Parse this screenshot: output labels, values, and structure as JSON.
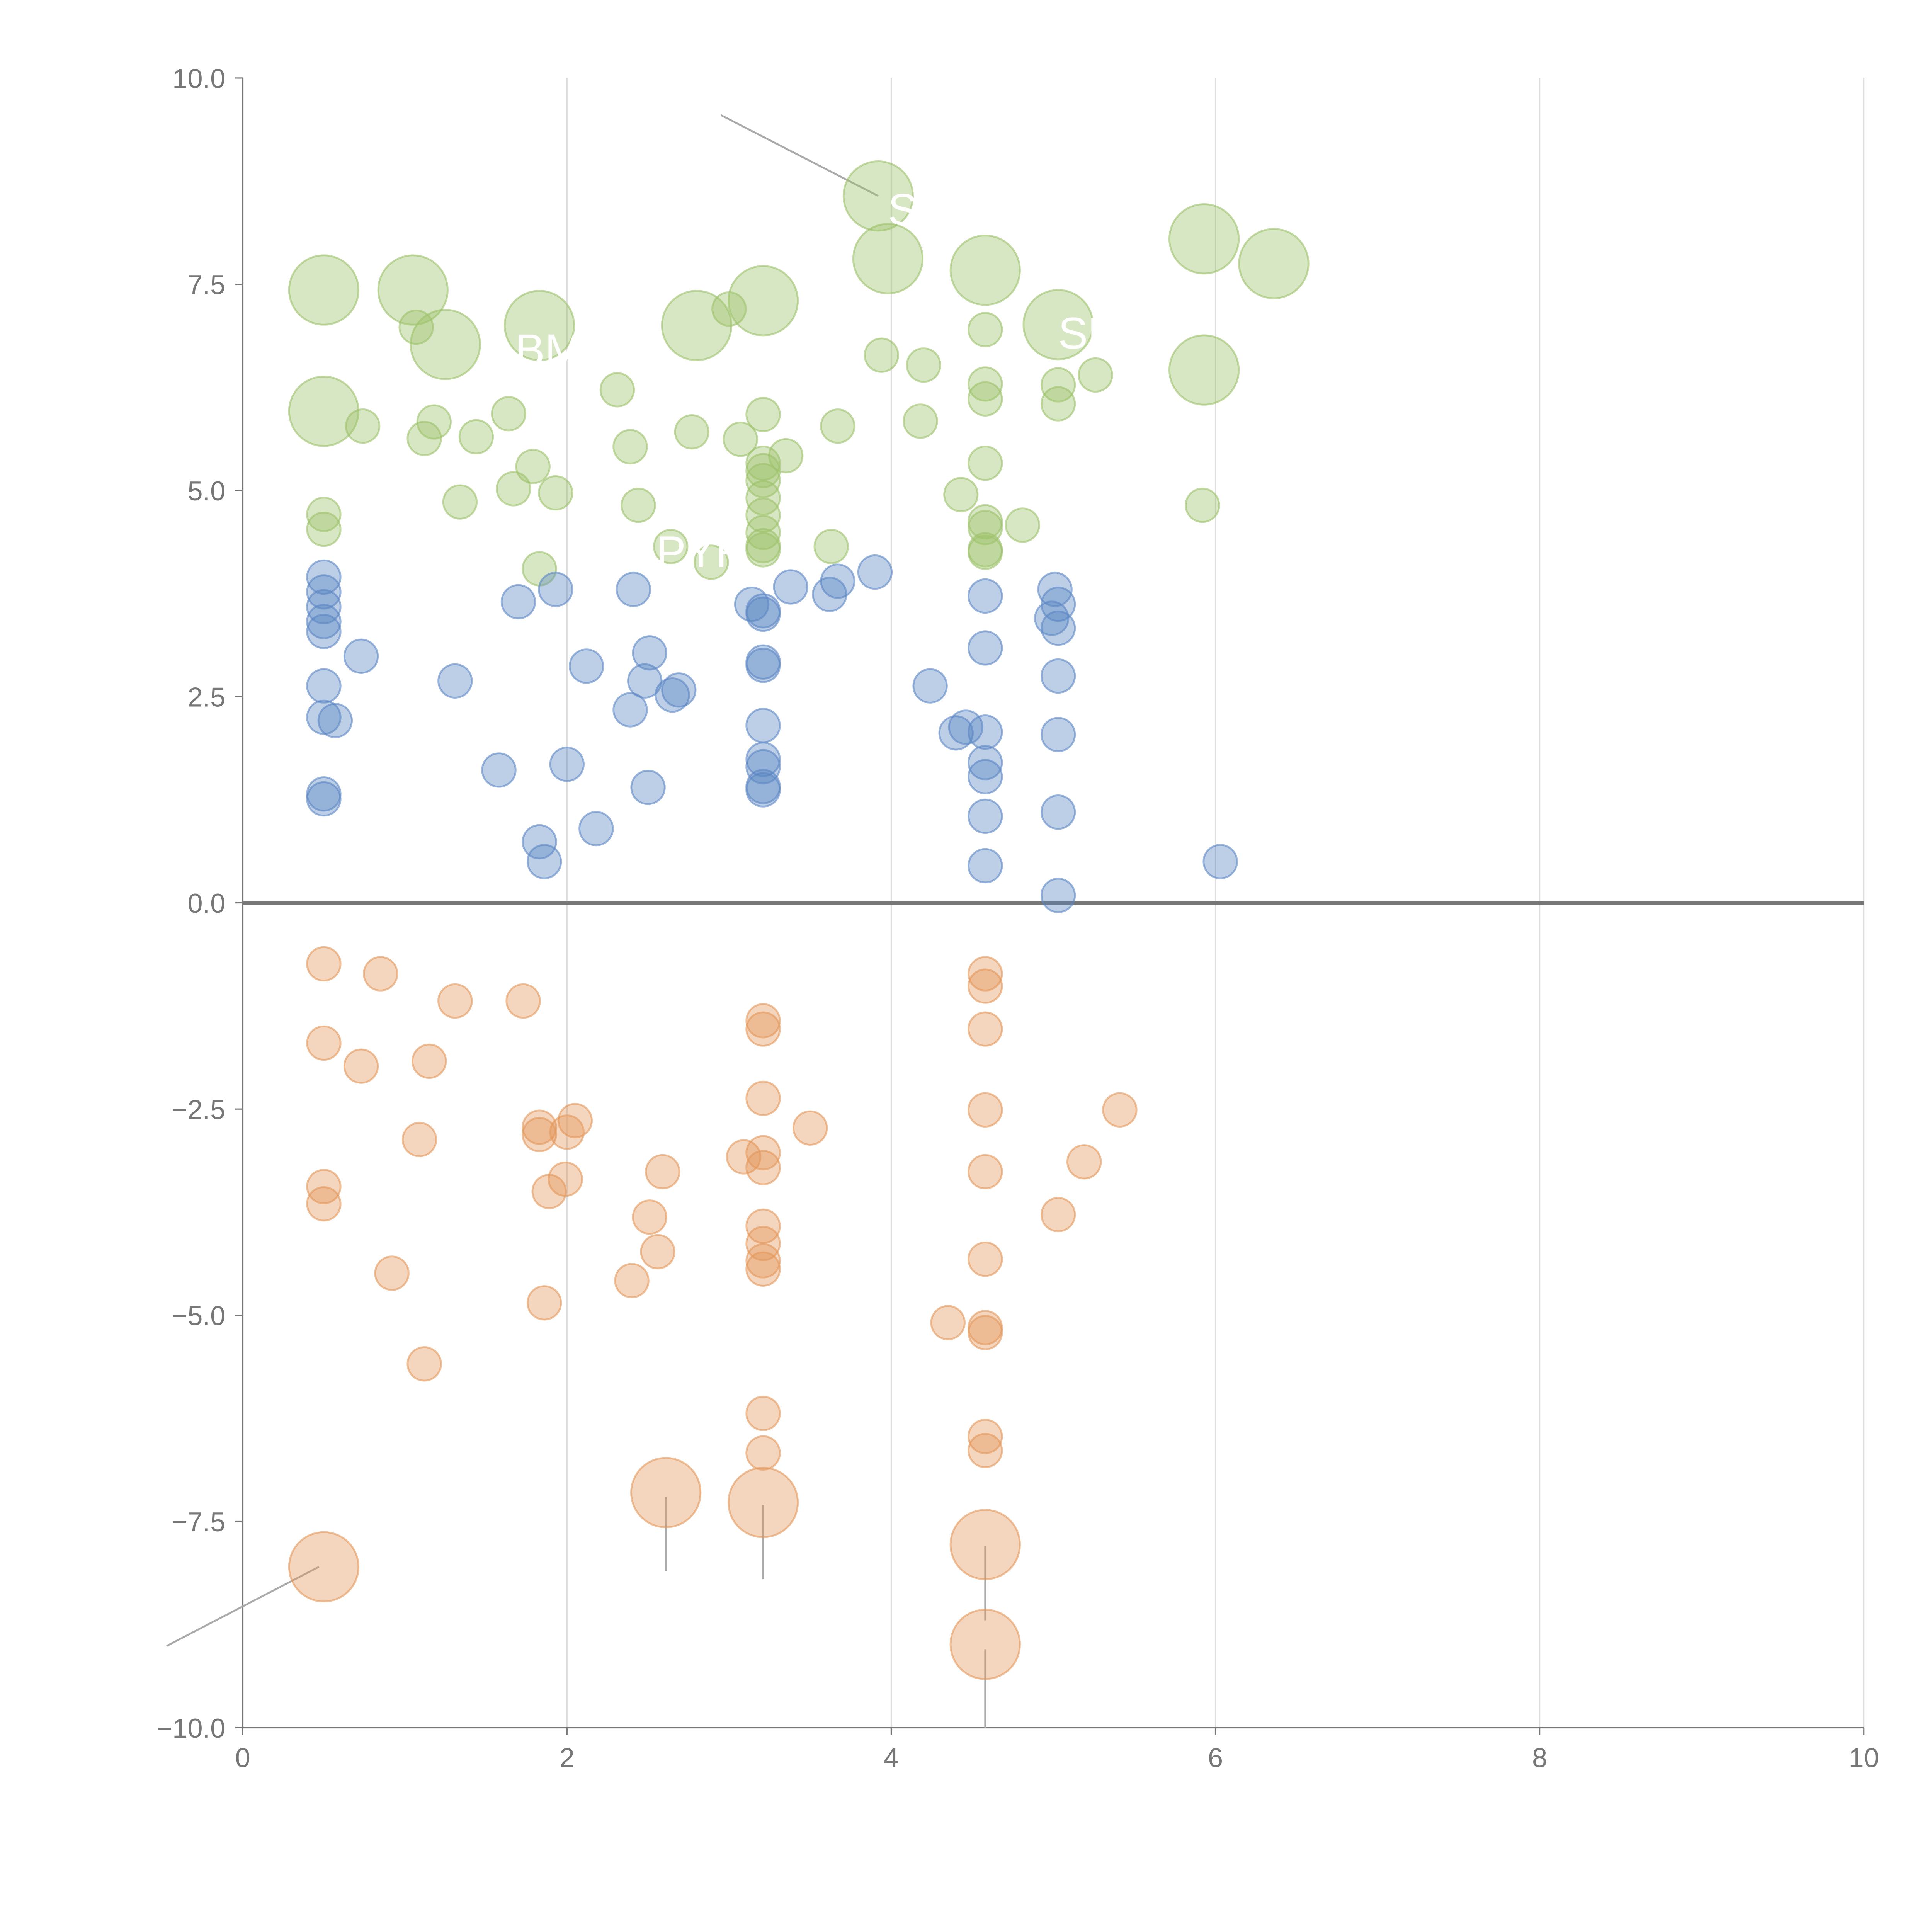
{
  "chart_data": {
    "type": "scatter",
    "title": "",
    "xlabel": "",
    "ylabel": "",
    "xlim": [
      0,
      10
    ],
    "ylim": [
      -10,
      10
    ],
    "grid": "vertical",
    "x_ticks": [
      0,
      2,
      4,
      6,
      8,
      10
    ],
    "x_tick_labels": [
      "0",
      "2",
      "4",
      "6",
      "8",
      "10"
    ],
    "y_ticks": [
      10,
      7.5,
      5,
      2.5,
      0,
      -2.5,
      -5,
      -7.5,
      -10
    ],
    "y_tick_labels": [
      "10.0",
      "7.5",
      "5.0",
      "2.5",
      "0.0",
      "−2.5",
      "−5.0",
      "−7.5",
      "−10.0"
    ],
    "series": [
      {
        "name": "green",
        "color": "#9dc26a",
        "points": [
          [
            0.5,
            7.43,
            3
          ],
          [
            1.05,
            7.43,
            3
          ],
          [
            1.25,
            6.77,
            3
          ],
          [
            1.83,
            7.0,
            3
          ],
          [
            2.8,
            7.0,
            3
          ],
          [
            3.21,
            7.3,
            3
          ],
          [
            3.92,
            8.57,
            3
          ],
          [
            3.98,
            7.81,
            3
          ],
          [
            4.58,
            7.67,
            3
          ],
          [
            5.03,
            7.01,
            3
          ],
          [
            5.93,
            8.05,
            3
          ],
          [
            6.36,
            7.75,
            3
          ],
          [
            0.5,
            5.96,
            3
          ],
          [
            5.93,
            6.46,
            3
          ],
          [
            1.07,
            6.98,
            1
          ],
          [
            3.0,
            7.2,
            1
          ],
          [
            0.74,
            5.78,
            1
          ],
          [
            1.18,
            5.83,
            1
          ],
          [
            1.12,
            5.63,
            1
          ],
          [
            1.44,
            5.65,
            1
          ],
          [
            1.64,
            5.93,
            1
          ],
          [
            2.31,
            6.22,
            1
          ],
          [
            2.39,
            5.53,
            1
          ],
          [
            2.77,
            5.71,
            1
          ],
          [
            3.07,
            5.62,
            1
          ],
          [
            3.21,
            5.92,
            1
          ],
          [
            3.35,
            5.42,
            1
          ],
          [
            3.67,
            5.78,
            1
          ],
          [
            3.94,
            6.64,
            1
          ],
          [
            4.2,
            6.52,
            1
          ],
          [
            4.18,
            5.84,
            1
          ],
          [
            4.58,
            6.95,
            1
          ],
          [
            4.58,
            6.29,
            1
          ],
          [
            4.58,
            6.11,
            1
          ],
          [
            5.03,
            6.28,
            1
          ],
          [
            5.03,
            6.05,
            1
          ],
          [
            5.26,
            6.4,
            1
          ],
          [
            4.58,
            5.33,
            1
          ],
          [
            4.43,
            4.95,
            1
          ],
          [
            4.81,
            4.58,
            1
          ],
          [
            4.58,
            4.62,
            1
          ],
          [
            4.58,
            4.55,
            1
          ],
          [
            4.58,
            4.28,
            1
          ],
          [
            4.58,
            4.25,
            1
          ],
          [
            5.92,
            4.82,
            1
          ],
          [
            0.5,
            4.71,
            1
          ],
          [
            0.5,
            4.53,
            1
          ],
          [
            1.34,
            4.86,
            1
          ],
          [
            1.67,
            5.02,
            1
          ],
          [
            1.79,
            5.29,
            1
          ],
          [
            1.93,
            4.97,
            1
          ],
          [
            2.44,
            4.82,
            1
          ],
          [
            1.83,
            4.05,
            1
          ],
          [
            2.64,
            4.32,
            1
          ],
          [
            2.89,
            4.13,
            1
          ],
          [
            3.63,
            4.32,
            1
          ],
          [
            3.21,
            5.33,
            1
          ],
          [
            3.21,
            5.24,
            1
          ],
          [
            3.21,
            5.12,
            1
          ],
          [
            3.21,
            4.91,
            1
          ],
          [
            3.21,
            4.7,
            1
          ],
          [
            3.21,
            4.49,
            1
          ],
          [
            3.21,
            4.33,
            1
          ],
          [
            3.21,
            4.28,
            1
          ]
        ]
      },
      {
        "name": "blue",
        "color": "#5b86c4",
        "points": [
          [
            0.5,
            3.95,
            1
          ],
          [
            0.5,
            3.77,
            1
          ],
          [
            0.5,
            3.59,
            1
          ],
          [
            0.5,
            3.41,
            1
          ],
          [
            0.5,
            3.29,
            1
          ],
          [
            0.5,
            2.63,
            1
          ],
          [
            0.5,
            2.25,
            1
          ],
          [
            0.57,
            2.21,
            1
          ],
          [
            0.73,
            2.99,
            1
          ],
          [
            0.5,
            1.32,
            1
          ],
          [
            0.5,
            1.26,
            1
          ],
          [
            1.31,
            2.69,
            1
          ],
          [
            1.58,
            1.61,
            1
          ],
          [
            1.7,
            3.65,
            1
          ],
          [
            1.93,
            3.8,
            1
          ],
          [
            1.83,
            0.74,
            1
          ],
          [
            1.86,
            0.5,
            1
          ],
          [
            2.0,
            1.68,
            1
          ],
          [
            2.12,
            2.87,
            1
          ],
          [
            2.18,
            0.9,
            1
          ],
          [
            2.39,
            2.34,
            1
          ],
          [
            2.41,
            3.8,
            1
          ],
          [
            2.48,
            2.69,
            1
          ],
          [
            2.51,
            3.03,
            1
          ],
          [
            2.5,
            1.4,
            1
          ],
          [
            2.65,
            2.52,
            1
          ],
          [
            2.69,
            2.58,
            1
          ],
          [
            3.14,
            3.62,
            1
          ],
          [
            3.21,
            3.54,
            1
          ],
          [
            3.21,
            3.5,
            1
          ],
          [
            3.21,
            2.88,
            1
          ],
          [
            3.21,
            2.92,
            1
          ],
          [
            3.21,
            2.15,
            1
          ],
          [
            3.21,
            1.74,
            1
          ],
          [
            3.21,
            1.65,
            1
          ],
          [
            3.21,
            1.41,
            1
          ],
          [
            3.21,
            1.37,
            1
          ],
          [
            3.38,
            3.83,
            1
          ],
          [
            3.62,
            3.74,
            1
          ],
          [
            3.67,
            3.9,
            1
          ],
          [
            3.9,
            4.01,
            1
          ],
          [
            4.24,
            2.63,
            1
          ],
          [
            4.4,
            2.06,
            1
          ],
          [
            4.46,
            2.13,
            1
          ],
          [
            4.58,
            3.72,
            1
          ],
          [
            4.58,
            3.09,
            1
          ],
          [
            4.58,
            2.07,
            1
          ],
          [
            4.58,
            1.7,
            1
          ],
          [
            4.58,
            1.53,
            1
          ],
          [
            4.58,
            1.05,
            1
          ],
          [
            4.58,
            0.45,
            1
          ],
          [
            5.01,
            3.8,
            1
          ],
          [
            5.03,
            3.62,
            1
          ],
          [
            4.99,
            3.45,
            1
          ],
          [
            5.03,
            3.33,
            1
          ],
          [
            5.03,
            2.75,
            1
          ],
          [
            5.03,
            2.04,
            1
          ],
          [
            5.03,
            1.1,
            1
          ],
          [
            5.03,
            0.09,
            1
          ],
          [
            6.03,
            0.5,
            1
          ]
        ]
      },
      {
        "name": "orange",
        "color": "#e3975a",
        "points": [
          [
            0.5,
            -0.74,
            1
          ],
          [
            0.85,
            -0.86,
            1
          ],
          [
            1.31,
            -1.19,
            1
          ],
          [
            1.73,
            -1.19,
            1
          ],
          [
            0.5,
            -1.7,
            1
          ],
          [
            0.73,
            -1.98,
            1
          ],
          [
            1.15,
            -1.92,
            1
          ],
          [
            1.09,
            -2.87,
            1
          ],
          [
            1.83,
            -2.72,
            1
          ],
          [
            1.83,
            -2.81,
            1
          ],
          [
            2.05,
            -2.64,
            1
          ],
          [
            2.0,
            -2.78,
            1
          ],
          [
            0.5,
            -3.44,
            1
          ],
          [
            0.5,
            -3.65,
            1
          ],
          [
            1.89,
            -3.5,
            1
          ],
          [
            1.99,
            -3.35,
            1
          ],
          [
            0.92,
            -4.49,
            1
          ],
          [
            1.86,
            -4.85,
            1
          ],
          [
            1.12,
            -5.59,
            1
          ],
          [
            2.59,
            -3.26,
            1
          ],
          [
            2.51,
            -3.81,
            1
          ],
          [
            2.56,
            -4.23,
            1
          ],
          [
            2.4,
            -4.58,
            1
          ],
          [
            3.21,
            -1.43,
            1
          ],
          [
            3.21,
            -1.53,
            1
          ],
          [
            3.21,
            -2.37,
            1
          ],
          [
            3.09,
            -3.08,
            1
          ],
          [
            3.21,
            -3.03,
            1
          ],
          [
            3.21,
            -3.21,
            1
          ],
          [
            3.21,
            -3.92,
            1
          ],
          [
            3.21,
            -4.13,
            1
          ],
          [
            3.21,
            -4.34,
            1
          ],
          [
            3.21,
            -4.44,
            1
          ],
          [
            3.21,
            -6.19,
            1
          ],
          [
            3.21,
            -6.67,
            1
          ],
          [
            3.5,
            -2.73,
            1
          ],
          [
            4.58,
            -0.86,
            1
          ],
          [
            4.58,
            -1.01,
            1
          ],
          [
            4.58,
            -1.53,
            1
          ],
          [
            4.58,
            -2.51,
            1
          ],
          [
            4.58,
            -3.26,
            1
          ],
          [
            4.58,
            -4.32,
            1
          ],
          [
            4.35,
            -5.09,
            1
          ],
          [
            4.58,
            -5.15,
            1
          ],
          [
            4.58,
            -5.21,
            1
          ],
          [
            4.58,
            -6.47,
            1
          ],
          [
            4.58,
            -6.64,
            1
          ],
          [
            5.03,
            -3.78,
            1
          ],
          [
            5.19,
            -3.14,
            1
          ],
          [
            5.41,
            -2.51,
            1
          ],
          [
            0.5,
            -8.05,
            3
          ],
          [
            2.61,
            -7.15,
            3
          ],
          [
            3.21,
            -7.27,
            3
          ],
          [
            4.58,
            -7.78,
            3
          ],
          [
            4.58,
            -8.99,
            3
          ]
        ]
      }
    ],
    "annotations": [
      {
        "text": "S",
        "x": 3.98,
        "y": 8.4
      },
      {
        "text": "SU",
        "x": 5.03,
        "y": 6.9
      },
      {
        "text": "BM",
        "x": 1.68,
        "y": 6.7
      },
      {
        "text": "PYR",
        "x": 2.55,
        "y": 4.25
      }
    ],
    "leader_lines": [
      {
        "x1": 3.92,
        "y1": 8.57,
        "x2": 2.95,
        "y2": 9.55
      },
      {
        "x1": 0.47,
        "y1": -8.05,
        "x2": -0.47,
        "y2": -9.01
      },
      {
        "x1": 2.61,
        "y1": -7.2,
        "x2": 2.61,
        "y2": -8.1
      },
      {
        "x1": 3.21,
        "y1": -7.3,
        "x2": 3.21,
        "y2": -8.2
      },
      {
        "x1": 4.58,
        "y1": -7.8,
        "x2": 4.58,
        "y2": -8.7
      },
      {
        "x1": 4.58,
        "y1": -9.05,
        "x2": 4.58,
        "y2": -10.0
      }
    ]
  }
}
